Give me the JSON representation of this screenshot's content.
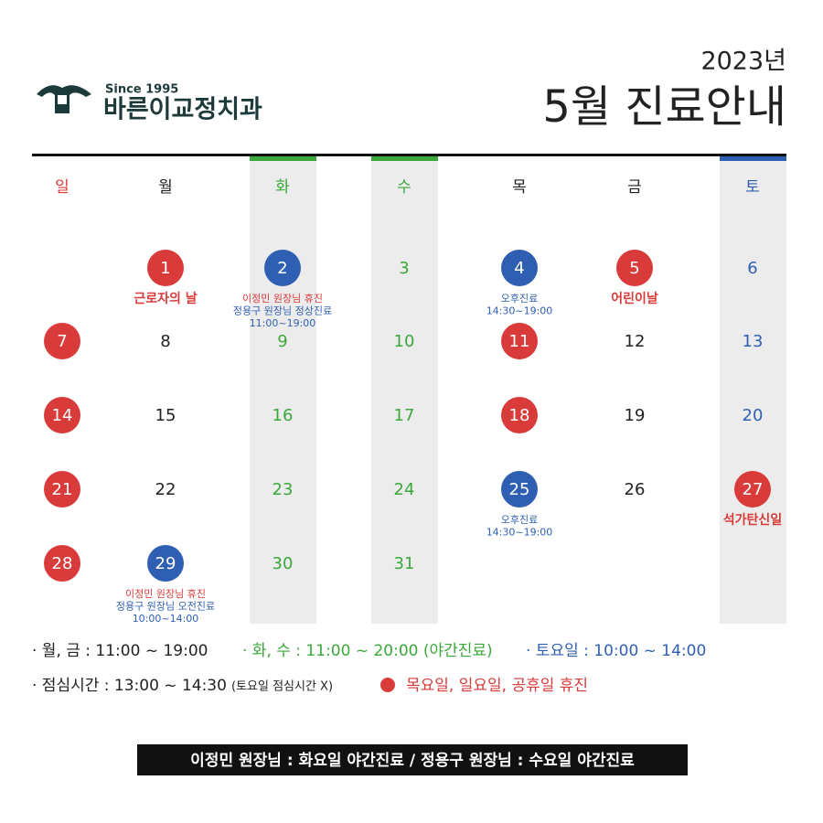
{
  "header": {
    "since": "Since 1995",
    "clinic_name": "바른이교정치과",
    "year": "2023년",
    "title": "5월 진료안내"
  },
  "colors": {
    "red": "#d93a3a",
    "blue": "#2f5fb3",
    "green": "#3aa83a",
    "black": "#222222"
  },
  "weekdays": [
    {
      "label": "일",
      "color": "red"
    },
    {
      "label": "월",
      "color": "black"
    },
    {
      "label": "화",
      "color": "green",
      "shaded": true
    },
    {
      "label": "수",
      "color": "green",
      "shaded": true
    },
    {
      "label": "목",
      "color": "black"
    },
    {
      "label": "금",
      "color": "black"
    },
    {
      "label": "토",
      "color": "blue",
      "shaded": true
    }
  ],
  "calendar": {
    "weeks": [
      [
        null,
        {
          "day": "1",
          "circle": "red",
          "notes": [
            {
              "text": "근로자의 날",
              "color": "red",
              "bold": true
            }
          ]
        },
        {
          "day": "2",
          "circle": "blue",
          "notes": [
            {
              "text": "이정민 원장님 휴진",
              "color": "red"
            },
            {
              "text": "정용구 원장님 정상진료",
              "color": "blue"
            },
            {
              "text": "11:00~19:00",
              "color": "blue"
            }
          ]
        },
        {
          "day": "3"
        },
        {
          "day": "4",
          "circle": "blue",
          "notes": [
            {
              "text": "오후진료",
              "color": "blue"
            },
            {
              "text": "14:30~19:00",
              "color": "blue"
            }
          ]
        },
        {
          "day": "5",
          "circle": "red",
          "notes": [
            {
              "text": "어린이날",
              "color": "red",
              "bold": true
            }
          ]
        },
        {
          "day": "6"
        }
      ],
      [
        {
          "day": "7",
          "circle": "red"
        },
        {
          "day": "8"
        },
        {
          "day": "9"
        },
        {
          "day": "10"
        },
        {
          "day": "11",
          "circle": "red"
        },
        {
          "day": "12"
        },
        {
          "day": "13"
        }
      ],
      [
        {
          "day": "14",
          "circle": "red"
        },
        {
          "day": "15"
        },
        {
          "day": "16"
        },
        {
          "day": "17"
        },
        {
          "day": "18",
          "circle": "red"
        },
        {
          "day": "19"
        },
        {
          "day": "20"
        }
      ],
      [
        {
          "day": "21",
          "circle": "red"
        },
        {
          "day": "22"
        },
        {
          "day": "23"
        },
        {
          "day": "24"
        },
        {
          "day": "25",
          "circle": "blue",
          "notes": [
            {
              "text": "오후진료",
              "color": "blue"
            },
            {
              "text": "14:30~19:00",
              "color": "blue"
            }
          ]
        },
        {
          "day": "26"
        },
        {
          "day": "27",
          "circle": "red",
          "notes": [
            {
              "text": "석가탄신일",
              "color": "red",
              "bold": true
            }
          ]
        }
      ],
      [
        {
          "day": "28",
          "circle": "red"
        },
        {
          "day": "29",
          "circle": "blue",
          "notes": [
            {
              "text": "이정민 원장님 휴진",
              "color": "red"
            },
            {
              "text": "정용구 원장님 오전진료",
              "color": "blue"
            },
            {
              "text": "10:00~14:00",
              "color": "blue"
            }
          ]
        },
        {
          "day": "30"
        },
        {
          "day": "31"
        },
        null,
        null,
        null
      ]
    ]
  },
  "legend": {
    "mon_fri": "· 월, 금 : 11:00 ~ 19:00",
    "tue_wed": "· 화, 수 : 11:00 ~ 20:00 (야간진료)",
    "sat": "· 토요일 : 10:00 ~ 14:00",
    "lunch": "· 점심시간 : 13:00 ~ 14:30",
    "lunch_note": "(토요일 점심시간 X)",
    "closed": "목요일, 일요일, 공휴일 휴진"
  },
  "footer": "이정민 원장님 : 화요일 야간진료 / 정용구 원장님 : 수요일 야간진료"
}
